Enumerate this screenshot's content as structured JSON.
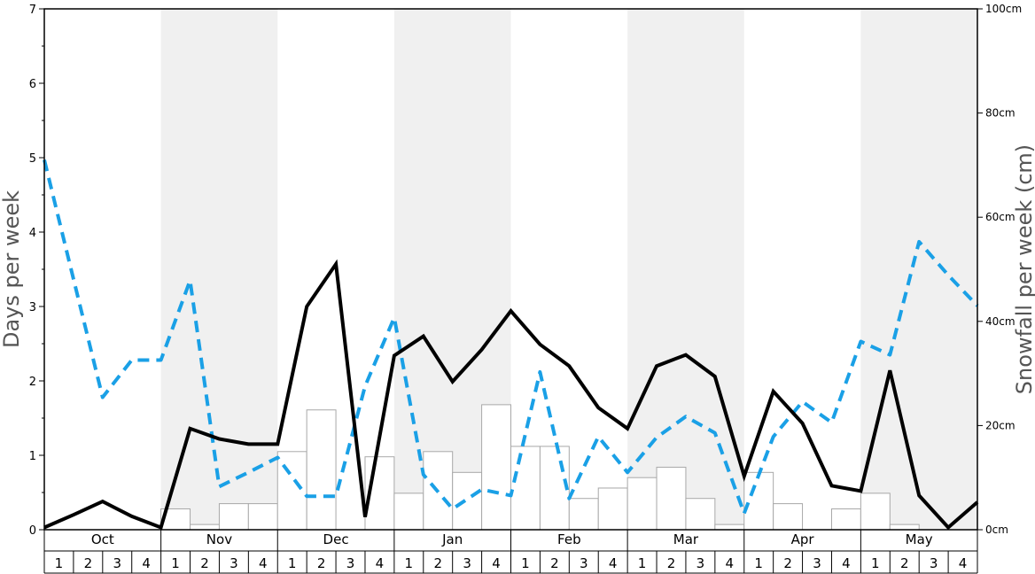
{
  "chart_data": {
    "type": "bar+line",
    "y_left": {
      "label": "Days per week",
      "range": [
        0,
        7
      ],
      "ticks": [
        0,
        1,
        2,
        3,
        4,
        5,
        6,
        7
      ],
      "minor_ticks": [
        0.5,
        1.5,
        2.5,
        3.5,
        4.5,
        5.5,
        6.5
      ]
    },
    "y_right": {
      "label": "Snowfall per week (cm)",
      "range": [
        0,
        100
      ],
      "ticks": [
        0,
        20,
        40,
        60,
        80,
        100
      ],
      "tick_labels": [
        "0cm",
        "20cm",
        "40cm",
        "60cm",
        "80cm",
        "100cm"
      ]
    },
    "months": [
      "Oct",
      "Nov",
      "Dec",
      "Jan",
      "Feb",
      "Mar",
      "Apr",
      "May"
    ],
    "month_shading": [
      false,
      true,
      false,
      true,
      false,
      true,
      false,
      true
    ],
    "weeks": [
      "1",
      "2",
      "3",
      "4"
    ],
    "bars_snowfall_cm": [
      0,
      0,
      0,
      0,
      4,
      1,
      5,
      5,
      15,
      23,
      0,
      14,
      7,
      15,
      11,
      24,
      16,
      16,
      6,
      8,
      10,
      12,
      6,
      1,
      11,
      5,
      0,
      4,
      7,
      1,
      0,
      0
    ],
    "line_black_days": [
      0.03,
      0.2,
      0.38,
      0.18,
      0.03,
      1.36,
      1.22,
      1.15,
      1.15,
      3.0,
      3.57,
      0.17,
      2.34,
      2.6,
      1.99,
      2.42,
      2.94,
      2.49,
      2.2,
      1.64,
      1.36,
      2.2,
      2.35,
      2.06,
      0.72,
      1.86,
      1.43,
      0.59,
      0.52,
      2.14,
      0.46,
      0.03,
      0.37
    ],
    "line_blue_dashed_days": [
      4.97,
      3.37,
      1.78,
      2.28,
      2.28,
      3.35,
      0.58,
      0.77,
      0.97,
      0.45,
      0.45,
      1.93,
      2.85,
      0.74,
      0.28,
      0.54,
      0.46,
      2.12,
      0.42,
      1.25,
      0.77,
      1.24,
      1.52,
      1.3,
      0.22,
      1.25,
      1.72,
      1.44,
      2.53,
      2.35,
      3.87,
      3.42,
      3.01
    ],
    "colors": {
      "bar_fill": "#ffffff",
      "bar_stroke": "#a8a8a8",
      "black_line": "#000000",
      "blue_line": "#1aa0e6",
      "shade": "#f0f0f0"
    }
  }
}
